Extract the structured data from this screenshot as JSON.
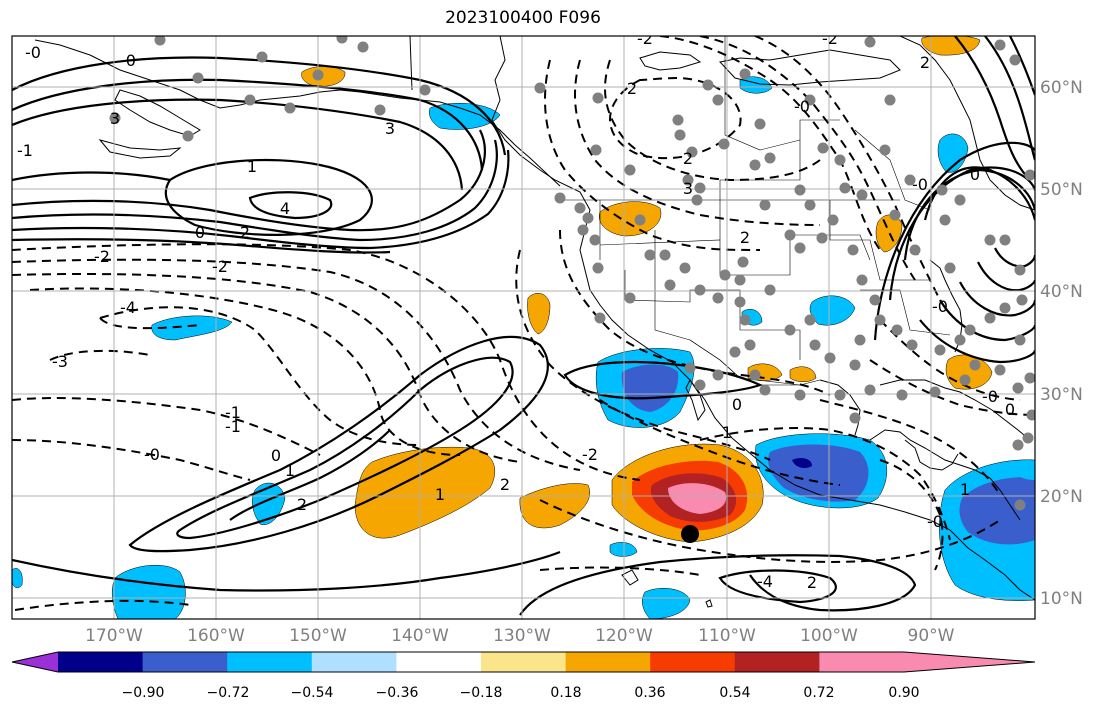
{
  "title": "2023100400 F096",
  "longitude_labels": [
    "170°W",
    "160°W",
    "150°W",
    "140°W",
    "130°W",
    "120°W",
    "110°W",
    "100°W",
    "90°W"
  ],
  "latitude_labels": [
    "60°N",
    "50°N",
    "40°N",
    "30°N",
    "20°N",
    "10°N"
  ],
  "colorbar": {
    "tick_labels": [
      "−0.90",
      "−0.72",
      "−0.54",
      "−0.36",
      "−0.18",
      "0.18",
      "0.36",
      "0.54",
      "0.72",
      "0.90"
    ],
    "colors": [
      "#9b30d9",
      "#00008b",
      "#3a5fcd",
      "#00bfff",
      "#b0e0ff",
      "#ffffff",
      "#fbe58a",
      "#f6a600",
      "#f63c00",
      "#b22222",
      "#f98bb0"
    ]
  },
  "contour_labels": [
    "-2",
    "-0",
    "-0",
    "2",
    "3",
    "3",
    "4",
    "1",
    "0",
    "2",
    "-2",
    "-2",
    "-4",
    "-3",
    "-1",
    "-0",
    "0",
    "1",
    "2",
    "1",
    "2",
    "-2",
    "2",
    "2",
    "-0",
    "0",
    "1",
    "-4",
    "2",
    "-1",
    "2",
    "-0",
    "0",
    "1",
    "-0",
    "0",
    "-0",
    "3",
    "-0",
    "-1",
    "-2"
  ],
  "colors": {
    "grid": "#b0b0b0",
    "coast": "#000000",
    "contour": "#000000",
    "station": "#808080",
    "marker": "#000000"
  }
}
